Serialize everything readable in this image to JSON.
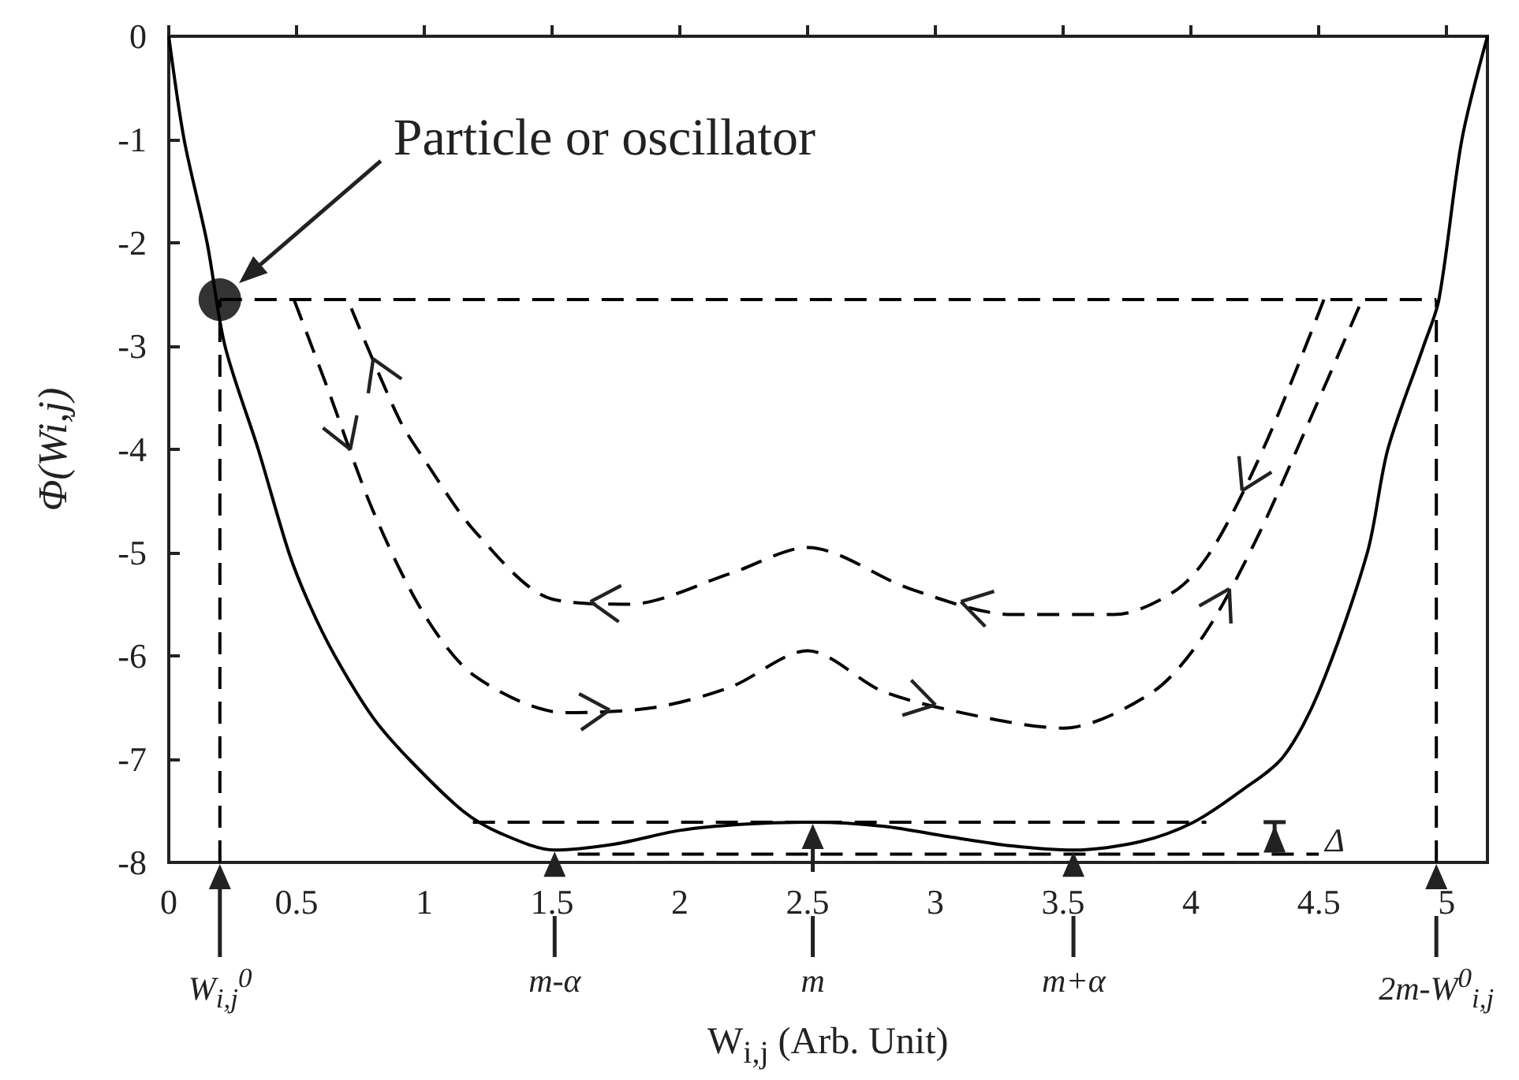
{
  "chart_data": {
    "type": "line",
    "xlabel": "W$_{i,j}$ (Arb. Unit)",
    "ylabel": "Φ(Wi,j)",
    "xlim": [
      0,
      5.16
    ],
    "ylim": [
      -8,
      0
    ],
    "xticks": [
      0,
      0.5,
      1,
      1.5,
      2,
      2.5,
      3,
      3.5,
      4,
      4.5,
      5
    ],
    "yticks": [
      0,
      -1,
      -2,
      -3,
      -4,
      -5,
      -6,
      -7,
      -8
    ],
    "grid": false,
    "series": [
      {
        "line_style": "solid",
        "color": "#000000",
        "x": [
          0,
          0.06,
          0.15,
          0.22,
          0.35,
          0.47,
          0.55,
          0.65,
          0.8,
          0.94,
          1.15,
          1.3,
          1.51,
          1.75,
          2.0,
          2.25,
          2.52,
          2.8,
          3.05,
          3.3,
          3.54,
          3.8,
          4.01,
          4.2,
          4.36,
          4.5,
          4.69,
          4.77,
          4.91,
          4.97,
          5.06,
          5.16
        ],
        "values": [
          0,
          -1,
          -2,
          -3,
          -4,
          -5,
          -5.5,
          -6,
          -6.6,
          -7,
          -7.5,
          -7.72,
          -7.88,
          -7.82,
          -7.69,
          -7.63,
          -7.61,
          -7.65,
          -7.75,
          -7.84,
          -7.88,
          -7.8,
          -7.61,
          -7.3,
          -6.98,
          -6.35,
          -5,
          -4,
          -3,
          -2.55,
          -1,
          0
        ]
      },
      {
        "line_style": "dashed",
        "color": "#000000",
        "x": [
          0.49,
          0.62,
          0.8,
          1.0,
          1.2,
          1.55,
          1.9,
          2.2,
          2.5,
          2.8,
          3.2,
          3.5,
          3.85,
          4.05,
          4.25,
          4.45,
          4.67
        ],
        "values": [
          -2.55,
          -3.4,
          -4.6,
          -5.6,
          -6.2,
          -6.55,
          -6.5,
          -6.3,
          -5.95,
          -6.35,
          -6.6,
          -6.7,
          -6.35,
          -5.8,
          -4.9,
          -3.8,
          -2.55
        ]
      },
      {
        "line_style": "dashed",
        "color": "#000000",
        "x": [
          4.52,
          4.3,
          4.1,
          3.95,
          3.7,
          3.3,
          2.9,
          2.5,
          2.2,
          1.8,
          1.5,
          1.2,
          1.0,
          0.9,
          0.7
        ],
        "values": [
          -2.55,
          -3.9,
          -4.9,
          -5.35,
          -5.6,
          -5.6,
          -5.35,
          -4.95,
          -5.2,
          -5.5,
          -5.45,
          -4.8,
          -4.1,
          -3.7,
          -2.55
        ]
      },
      {
        "type": "line",
        "line_style": "dashed",
        "color": "#000000",
        "x": [
          0.2,
          4.96
        ],
        "values": [
          -2.55,
          -2.55
        ]
      },
      {
        "type": "line",
        "line_style": "dashed",
        "color": "#000000",
        "x": [
          0.2,
          0.2
        ],
        "values": [
          -8,
          -2.55
        ]
      },
      {
        "type": "line",
        "line_style": "dashed",
        "color": "#000000",
        "x": [
          4.96,
          4.96
        ],
        "values": [
          -8,
          -2.55
        ]
      },
      {
        "type": "line",
        "line_style": "dashed",
        "color": "#000000",
        "x": [
          1.19,
          4.06
        ],
        "values": [
          -7.61,
          -7.61
        ]
      },
      {
        "type": "line",
        "line_style": "dashed",
        "color": "#000000",
        "x": [
          1.6,
          4.5
        ],
        "values": [
          -7.92,
          -7.92
        ]
      },
      {
        "type": "scatter",
        "marker": "circle",
        "color": "#000000",
        "x": [
          0.2
        ],
        "values": [
          -2.55
        ]
      }
    ],
    "annotations": [
      "Particle or oscillator",
      {
        "text": "Δ",
        "x": 4.5,
        "y": -7.92
      },
      {
        "text": "W$_{i,j}$$^{0}$",
        "x": 0.2,
        "y": -8
      },
      "m-α",
      "m",
      "m+α",
      {
        "text": "2m-W$^{0}$$_{i,j}$",
        "x": 4.96,
        "y": -8
      }
    ]
  }
}
